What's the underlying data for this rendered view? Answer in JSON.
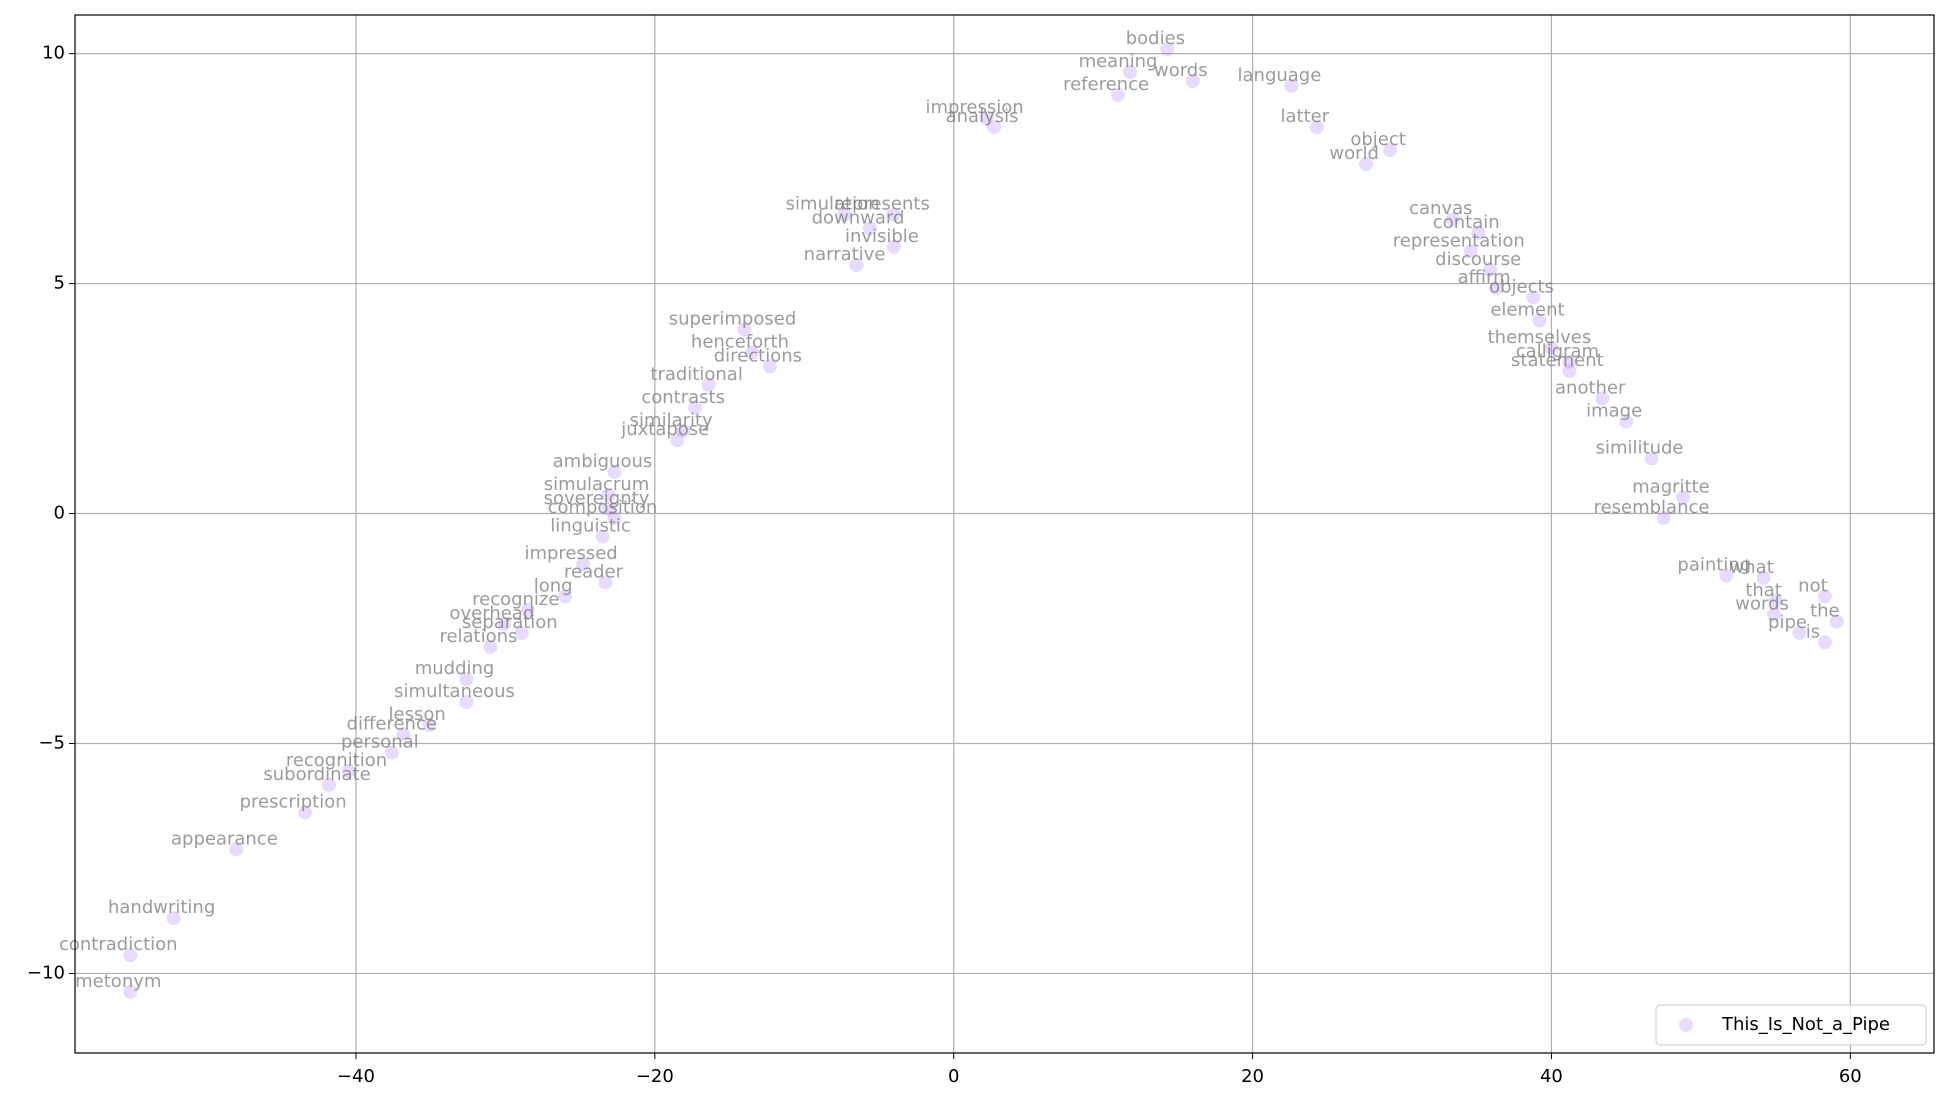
{
  "chart_data": {
    "type": "scatter",
    "series": [
      {
        "name": "This_Is_Not_a_Pipe",
        "color": "#9b5cf6",
        "labels": [
          "metonym",
          "contradiction",
          "handwriting",
          "appearance",
          "prescription",
          "subordinate",
          "recognition",
          "personal",
          "difference",
          "lesson",
          "simultaneous",
          "mudding",
          "relations",
          "overhead",
          "separation",
          "recognize",
          "long",
          "reader",
          "impressed",
          "linguistic",
          "composition",
          "sovereignty",
          "simulacrum",
          "ambiguous",
          "juxtapose",
          "similarity",
          "contrasts",
          "traditional",
          "henceforth",
          "directions",
          "superimposed",
          "narrative",
          "simulation",
          "represents",
          "downward",
          "invisible",
          "analysis",
          "impression",
          "reference",
          "meaning",
          "bodies",
          "words",
          "language",
          "latter",
          "world",
          "object",
          "canvas",
          "contain",
          "representation",
          "discourse",
          "affirm",
          "objects",
          "element",
          "themselves",
          "calligram",
          "statement",
          "another",
          "image",
          "similitude",
          "magritte",
          "resemblance",
          "painting",
          "what",
          "that",
          "words",
          "pipe",
          "the",
          "is",
          "not"
        ],
        "x": [
          -55.1,
          -55.1,
          -52.2,
          -48,
          -43.4,
          -41.8,
          -40.5,
          -37.6,
          -36.8,
          -35.1,
          -32.6,
          -32.6,
          -31,
          -30.1,
          -28.9,
          -28.5,
          -26,
          -23.3,
          -24.8,
          -23.5,
          -22.7,
          -23.1,
          -23.1,
          -22.7,
          -18.5,
          -18.1,
          -17.3,
          -16.4,
          -13.5,
          -12.3,
          -14,
          -6.5,
          -7.3,
          -4,
          -5.6,
          -4,
          2.7,
          2.2,
          11,
          11.8,
          14.3,
          16,
          22.6,
          24.3,
          27.6,
          29.2,
          33.4,
          35.1,
          34.6,
          35.9,
          36.3,
          38.8,
          39.2,
          40,
          41.2,
          41.2,
          43.4,
          45,
          46.7,
          48.8,
          47.5,
          51.7,
          54.2,
          55,
          54.9,
          56.6,
          59.1,
          58.3,
          58.3
        ],
        "y": [
          -10.4,
          -9.6,
          -8.8,
          -7.3,
          -6.5,
          -5.9,
          -5.6,
          -5.2,
          -4.8,
          -4.6,
          -4.1,
          -3.6,
          -2.9,
          -2.4,
          -2.6,
          -2.1,
          -1.8,
          -1.5,
          -1.1,
          -0.5,
          -0.1,
          0.1,
          0.4,
          0.9,
          1.6,
          1.8,
          2.3,
          2.8,
          3.5,
          3.2,
          4.0,
          5.4,
          6.5,
          6.5,
          6.2,
          5.8,
          8.4,
          8.6,
          9.1,
          9.6,
          10.1,
          9.4,
          9.3,
          8.4,
          7.6,
          7.9,
          6.4,
          6.1,
          5.7,
          5.3,
          4.9,
          4.7,
          4.2,
          3.6,
          3.3,
          3.1,
          2.5,
          2.0,
          1.2,
          0.35,
          -0.1,
          -1.35,
          -1.4,
          -1.9,
          -2.2,
          -2.6,
          -2.35,
          -2.8,
          -1.8
        ]
      }
    ],
    "xlim": [
      -58.8,
      65.6
    ],
    "ylim": [
      -11.73,
      10.84
    ],
    "xticks": [
      {
        "value": -40,
        "label": "−40"
      },
      {
        "value": -20,
        "label": "−20"
      },
      0,
      20,
      40,
      60
    ],
    "yticks": [
      {
        "value": -10,
        "label": "−10"
      },
      {
        "value": -5,
        "label": "−5"
      },
      0,
      5,
      10
    ],
    "grid": true,
    "legend": "lower right"
  }
}
